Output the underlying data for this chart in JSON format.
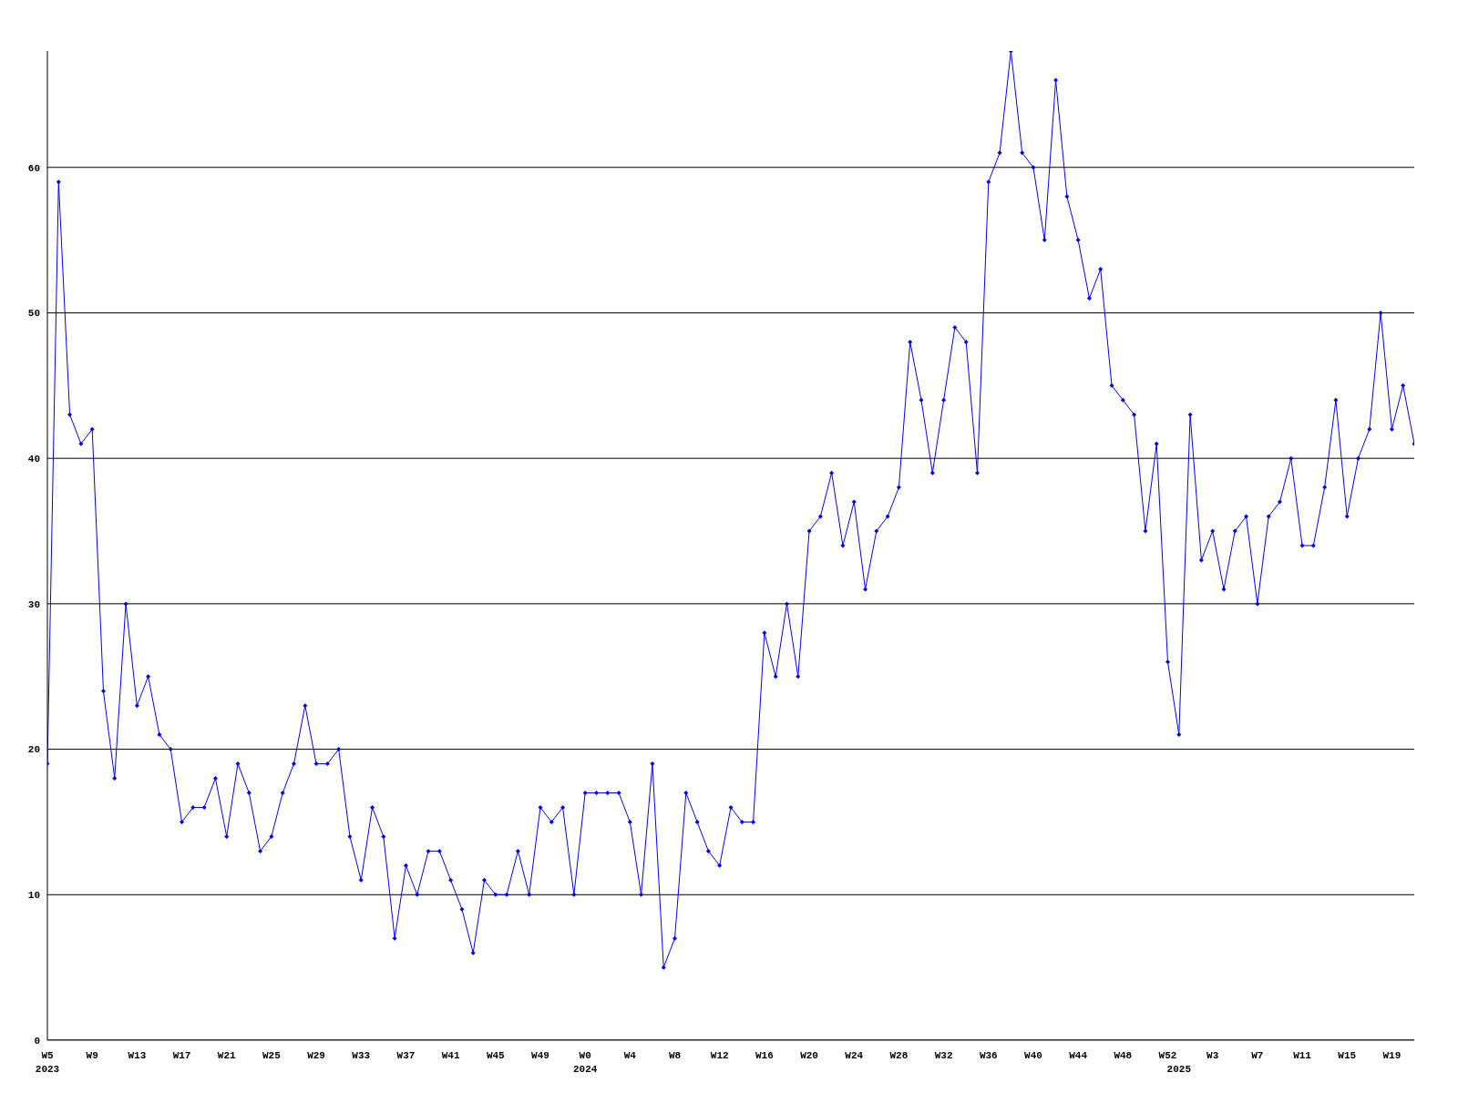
{
  "chart_data": {
    "type": "line",
    "categories": [
      "W5\n2023",
      null,
      null,
      null,
      "W9",
      null,
      null,
      null,
      "W13",
      null,
      null,
      null,
      "W17",
      null,
      null,
      null,
      "W21",
      null,
      null,
      null,
      "W25",
      null,
      null,
      null,
      "W29",
      null,
      null,
      null,
      "W33",
      null,
      null,
      null,
      "W37",
      null,
      null,
      null,
      "W41",
      null,
      null,
      null,
      "W45",
      null,
      null,
      null,
      "W49",
      null,
      null,
      null,
      "W0\n2024",
      null,
      null,
      null,
      "W4",
      null,
      null,
      null,
      "W8",
      null,
      null,
      null,
      "W12",
      null,
      null,
      null,
      "W16",
      null,
      null,
      null,
      "W20",
      null,
      null,
      null,
      "W24",
      null,
      null,
      null,
      "W28",
      null,
      null,
      null,
      "W32",
      null,
      null,
      null,
      "W36",
      null,
      null,
      null,
      "W40",
      null,
      null,
      null,
      "W44",
      null,
      null,
      null,
      "W48",
      null,
      null,
      null,
      "W52",
      "\n2025",
      null,
      null,
      "W3",
      null,
      null,
      null,
      "W7",
      null,
      null,
      null,
      "W11",
      null,
      null,
      null,
      "W15",
      null,
      null,
      null,
      "W19",
      null,
      null
    ],
    "series": [
      {
        "color": "#0000ff",
        "values": [
          19,
          59,
          43,
          41,
          42,
          24,
          18,
          30,
          23,
          25,
          21,
          20,
          15,
          16,
          16,
          18,
          14,
          19,
          17,
          13,
          14,
          17,
          19,
          23,
          19,
          19,
          20,
          14,
          11,
          16,
          14,
          7,
          12,
          10,
          13,
          13,
          11,
          9,
          6,
          11,
          10,
          10,
          13,
          10,
          16,
          15,
          16,
          10,
          17,
          17,
          17,
          17,
          15,
          10,
          19,
          5,
          7,
          17,
          15,
          13,
          12,
          16,
          15,
          15,
          28,
          25,
          30,
          25,
          35,
          36,
          39,
          34,
          37,
          31,
          35,
          36,
          38,
          48,
          44,
          39,
          44,
          49,
          48,
          39,
          59,
          61,
          68,
          61,
          60,
          55,
          66,
          58,
          55,
          51,
          53,
          45,
          44,
          43,
          35,
          41,
          26,
          21,
          43,
          33,
          35,
          31,
          35,
          36,
          30,
          36,
          37,
          40,
          34,
          34,
          38,
          44,
          36,
          40,
          42,
          50,
          42,
          45,
          41
        ]
      }
    ],
    "ylim": [
      0,
      68
    ],
    "yticks": [
      0,
      10,
      20,
      30,
      40,
      50,
      60
    ],
    "grid": "y",
    "marker": "diamond",
    "line_style": "solid"
  }
}
